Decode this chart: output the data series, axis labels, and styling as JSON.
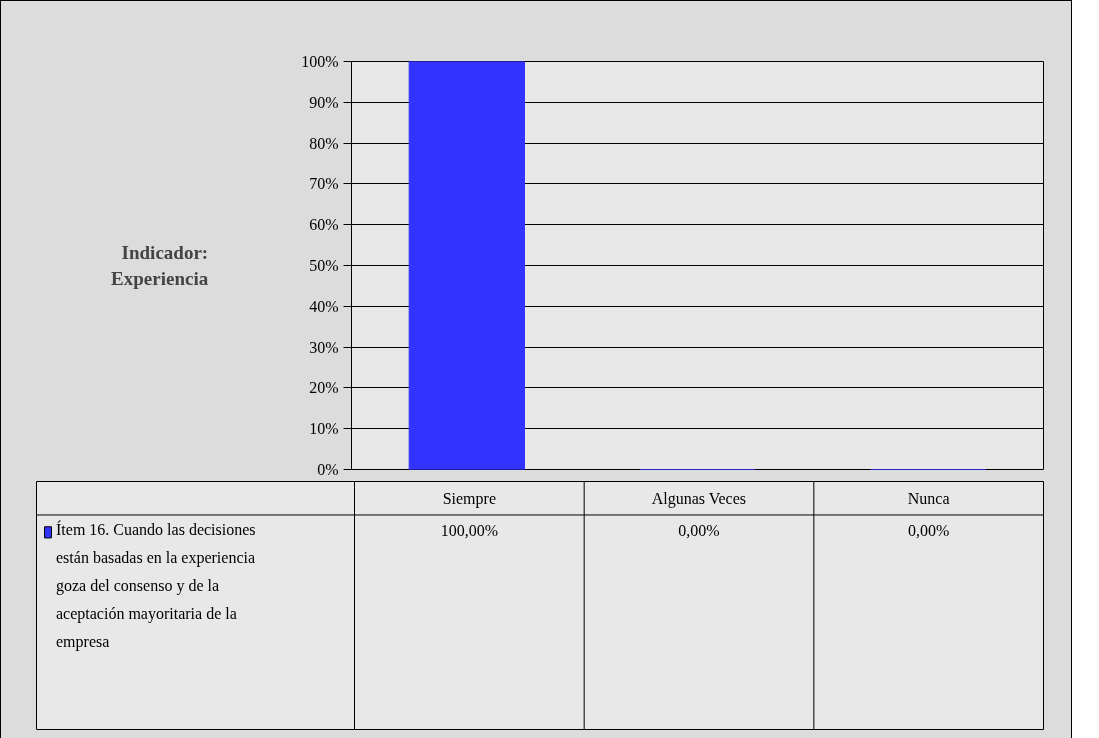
{
  "chart_data": {
    "type": "bar",
    "ylabel": "Indicador: Experiencia",
    "categories": [
      "Siempre",
      "Algunas Veces",
      "Nunca"
    ],
    "series": [
      {
        "name": "Ítem 16. Cuando las decisiones están basadas en la experiencia goza del consenso y de la aceptación mayoritaria de la empresa",
        "color": "#3333ff",
        "values": [
          100,
          0,
          0
        ],
        "value_labels": [
          "100,00%",
          "0,00%",
          "0,00%"
        ]
      }
    ],
    "ylim": [
      0,
      100
    ],
    "yticks": [
      {
        "value": 0,
        "label": "0%"
      },
      {
        "value": 10,
        "label": "10%"
      },
      {
        "value": 20,
        "label": "20%"
      },
      {
        "value": 30,
        "label": "30%"
      },
      {
        "value": 40,
        "label": "40%"
      },
      {
        "value": 50,
        "label": "50%"
      },
      {
        "value": 60,
        "label": "60%"
      },
      {
        "value": 70,
        "label": "70%"
      },
      {
        "value": 80,
        "label": "80%"
      },
      {
        "value": 90,
        "label": "90%"
      },
      {
        "value": 100,
        "label": "100%"
      }
    ],
    "grid": "y",
    "legend": "bottom left"
  }
}
